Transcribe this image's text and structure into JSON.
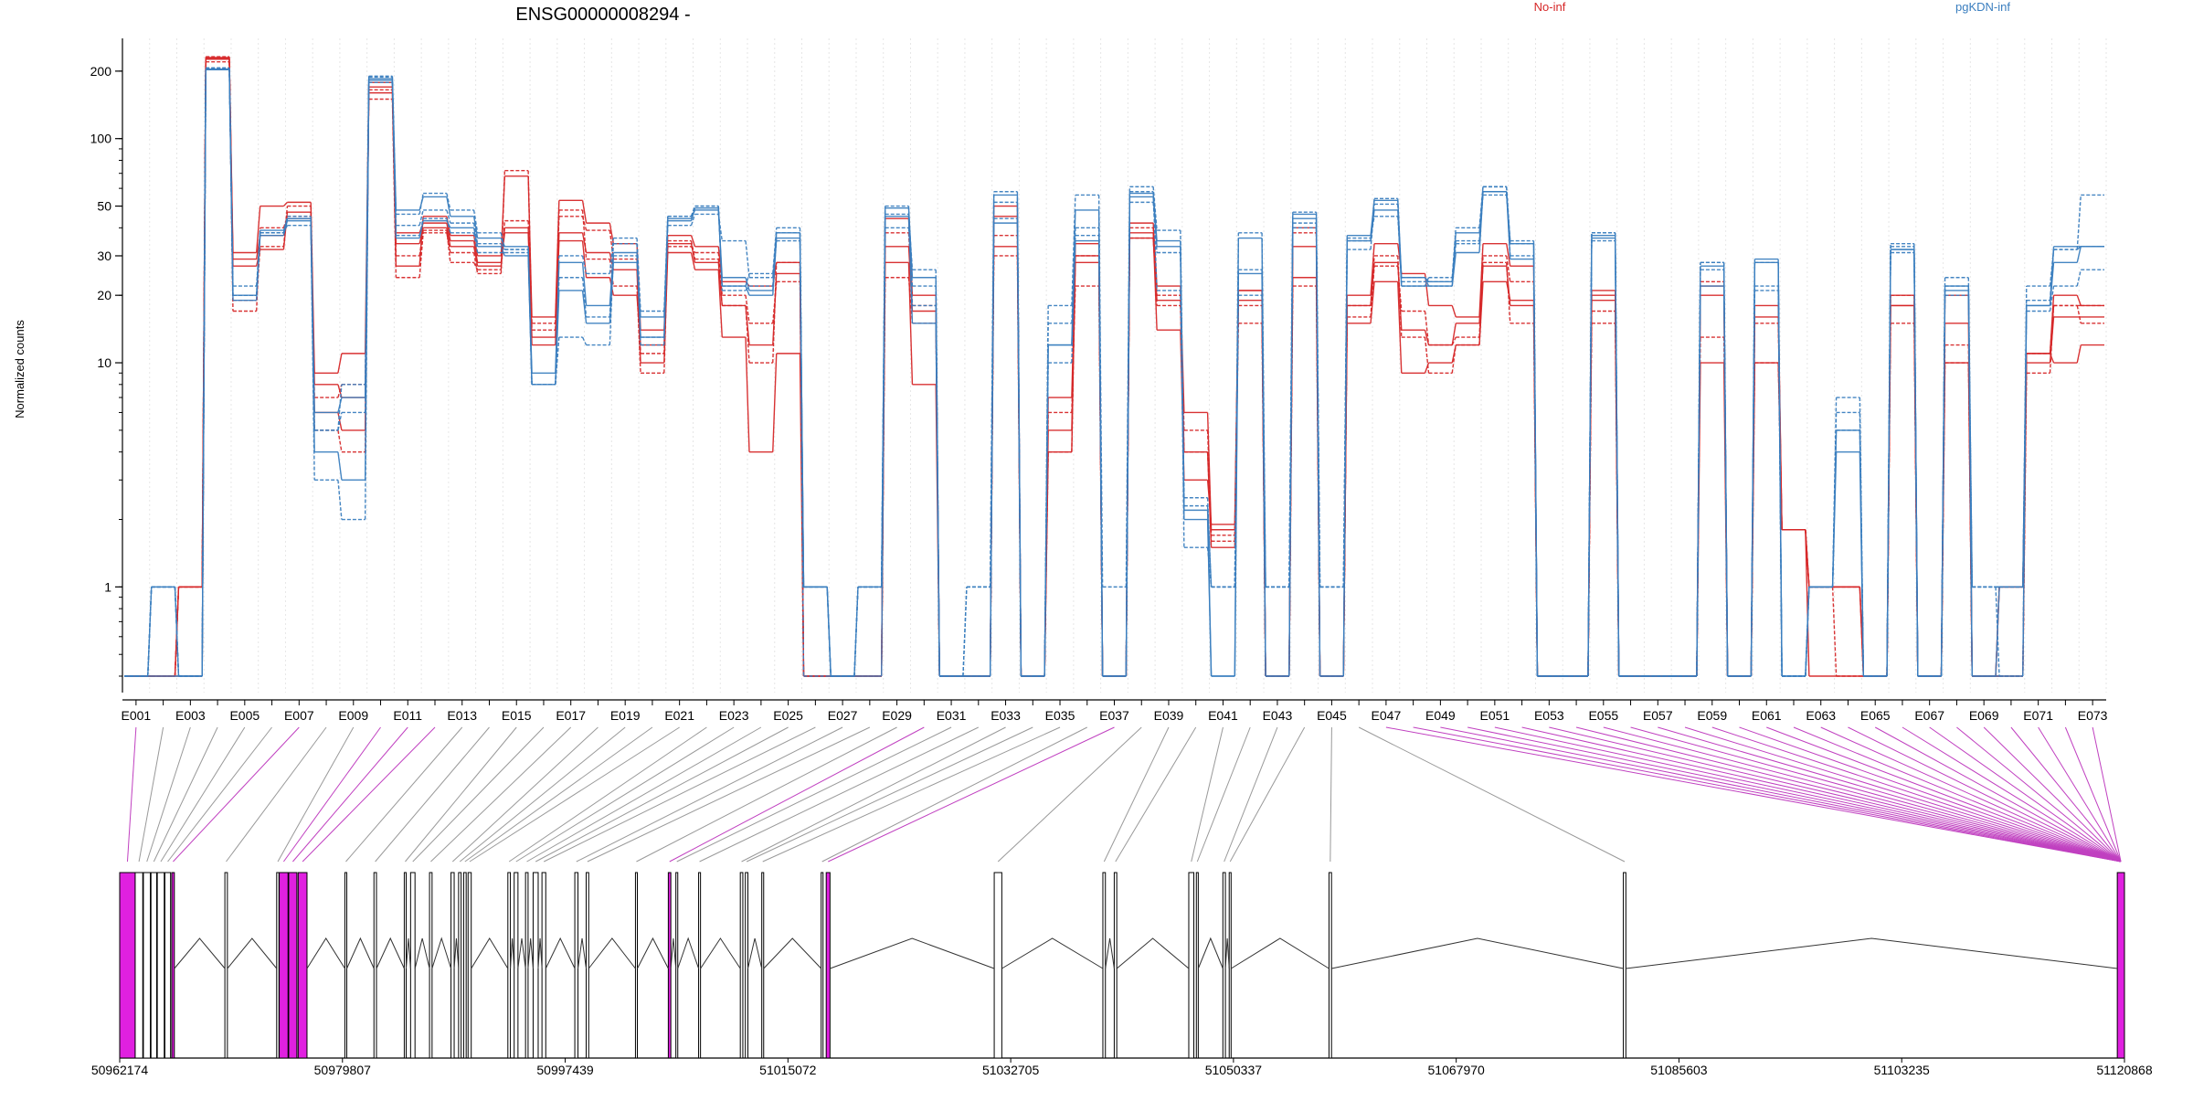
{
  "title": "ENSG00000008294 -",
  "ylabel": "Normalized counts",
  "legend": [
    {
      "label": "No-inf",
      "color": "#d62728"
    },
    {
      "label": "pgKDN-inf",
      "color": "#3a7ebf"
    }
  ],
  "chart_data": {
    "type": "line",
    "title": "ENSG00000008294 -",
    "ylabel": "Normalized counts",
    "y_scale": "log",
    "ylim": [
      0.4,
      280
    ],
    "y_ticks": [
      1,
      10,
      20,
      30,
      50,
      100,
      200
    ],
    "y_tick_labels": [
      "1",
      "10",
      "20",
      "30",
      "50",
      "100",
      "200"
    ],
    "grid": "vertical, light dotted",
    "legend_position": "top-right",
    "zero_floor": 0.4,
    "categories": [
      "E001",
      "E002",
      "E003",
      "E004",
      "E005",
      "E006",
      "E007",
      "E008",
      "E009",
      "E010",
      "E011",
      "E012",
      "E013",
      "E014",
      "E015",
      "E016",
      "E017",
      "E018",
      "E019",
      "E020",
      "E021",
      "E022",
      "E023",
      "E024",
      "E025",
      "E026",
      "E027",
      "E028",
      "E029",
      "E030",
      "E031",
      "E032",
      "E033",
      "E034",
      "E035",
      "E036",
      "E037",
      "E038",
      "E039",
      "E040",
      "E041",
      "E042",
      "E043",
      "E044",
      "E045",
      "E046",
      "E047",
      "E048",
      "E049",
      "E050",
      "E051",
      "E052",
      "E053",
      "E054",
      "E055",
      "E056",
      "E057",
      "E058",
      "E059",
      "E060",
      "E061",
      "E062",
      "E063",
      "E064",
      "E065",
      "E066",
      "E067",
      "E068",
      "E069",
      "E070",
      "E071",
      "E072",
      "E073"
    ],
    "x_tick_labels": [
      "E001",
      "E003",
      "E005",
      "E007",
      "E009",
      "E011",
      "E013",
      "E015",
      "E017",
      "E019",
      "E021",
      "E023",
      "E025",
      "E027",
      "E029",
      "E031",
      "E033",
      "E035",
      "E037",
      "E039",
      "E041",
      "E043",
      "E045",
      "E047",
      "E049",
      "E051",
      "E053",
      "E055",
      "E057",
      "E059",
      "E061",
      "E063",
      "E065",
      "E067",
      "E069",
      "E071",
      "E073"
    ],
    "series": [
      {
        "group": "No-inf",
        "color": "#d62728",
        "values": [
          0,
          0,
          1,
          230,
          31,
          50,
          52,
          9,
          11,
          178,
          27,
          45,
          37,
          30,
          68,
          16,
          53,
          42,
          34,
          14,
          37,
          33,
          23,
          22,
          28,
          0,
          0,
          0,
          44,
          20,
          0,
          0,
          50,
          0,
          7,
          30,
          0,
          42,
          22,
          6,
          1.8,
          21,
          0,
          40,
          0,
          20,
          34,
          25,
          18,
          16,
          34,
          27,
          0,
          0,
          20,
          0,
          0,
          0,
          22,
          0,
          18,
          1.8,
          1,
          1,
          0,
          18,
          0,
          20,
          0,
          1,
          11,
          20,
          18
        ]
      },
      {
        "group": "No-inf",
        "color": "#d62728",
        "values": [
          0,
          0,
          1,
          220,
          19,
          33,
          50,
          7,
          8,
          150,
          24,
          38,
          31,
          25,
          72,
          14,
          45,
          39,
          29,
          11,
          33,
          31,
          20,
          15,
          23,
          0,
          0,
          0,
          24,
          15,
          0,
          0,
          30,
          0,
          6,
          22,
          0,
          36,
          18,
          4,
          1.6,
          15,
          0,
          22,
          0,
          16,
          27,
          17,
          12,
          13,
          30,
          23,
          0,
          0,
          15,
          0,
          0,
          0,
          13,
          0,
          15,
          1.8,
          1,
          0.4,
          0,
          15,
          0,
          10,
          0,
          0.4,
          9,
          18,
          15
        ]
      },
      {
        "group": "No-inf",
        "color": "#d62728",
        "values": [
          0,
          0,
          0,
          228,
          27,
          32,
          47,
          6,
          5,
          170,
          38,
          42,
          35,
          28,
          38,
          12,
          38,
          31,
          26,
          10,
          31,
          26,
          13,
          4,
          11,
          0,
          0,
          0,
          28,
          8,
          0,
          0,
          45,
          0,
          4,
          34,
          0,
          38,
          14,
          3,
          1.9,
          21,
          0,
          24,
          0,
          15,
          23,
          9,
          10,
          12,
          23,
          19,
          0,
          0,
          21,
          0,
          0,
          0,
          10,
          0,
          10,
          1.8,
          0.4,
          0.4,
          0,
          20,
          0,
          10,
          0,
          1,
          11,
          10,
          12
        ]
      },
      {
        "group": "No-inf",
        "color": "#d62728",
        "values": [
          0,
          0,
          1,
          232,
          17,
          40,
          45,
          5,
          4,
          165,
          30,
          39,
          28,
          26,
          43,
          15,
          48,
          29,
          22,
          9,
          35,
          29,
          18,
          10,
          28,
          0,
          0,
          0,
          38,
          18,
          0,
          0,
          37,
          0,
          4,
          30,
          0,
          40,
          20,
          5,
          1.7,
          18,
          0,
          38,
          0,
          18,
          30,
          13,
          9,
          12,
          28,
          15,
          0,
          0,
          17,
          0,
          0,
          0,
          23,
          0,
          10,
          1.8,
          1,
          1,
          0,
          20,
          0,
          12,
          0,
          0.4,
          11,
          18,
          18
        ]
      },
      {
        "group": "No-inf",
        "color": "#d62728",
        "values": [
          0,
          0,
          1,
          226,
          29,
          37,
          44,
          8,
          7,
          160,
          34,
          40,
          33,
          27,
          40,
          13,
          35,
          24,
          20,
          12,
          34,
          28,
          18,
          12,
          25,
          0,
          0,
          0,
          33,
          17,
          0,
          0,
          33,
          0,
          5,
          28,
          0,
          36,
          19,
          4,
          1.5,
          19,
          0,
          33,
          0,
          18,
          28,
          14,
          12,
          15,
          27,
          18,
          0,
          0,
          19,
          0,
          0,
          0,
          20,
          0,
          16,
          1.8,
          1,
          1,
          0,
          18,
          0,
          15,
          0,
          0.4,
          10,
          16,
          16
        ]
      },
      {
        "group": "pgKDN-inf",
        "color": "#3a7ebf",
        "values": [
          0,
          1,
          0,
          205,
          22,
          38,
          45,
          5,
          8,
          190,
          46,
          57,
          48,
          38,
          32,
          8,
          24,
          16,
          34,
          12,
          45,
          50,
          21,
          22,
          35,
          1,
          0,
          1,
          46,
          26,
          0,
          1,
          58,
          0,
          18,
          56,
          1,
          61,
          39,
          2.5,
          1,
          38,
          1,
          47,
          1,
          35,
          54,
          22,
          24,
          40,
          61,
          35,
          0,
          0,
          38,
          0,
          0,
          0,
          28,
          0,
          22,
          0,
          1,
          7,
          0,
          34,
          0,
          24,
          1,
          0.4,
          22,
          32,
          56
        ]
      },
      {
        "group": "pgKDN-inf",
        "color": "#3a7ebf",
        "values": [
          0,
          1,
          0,
          203,
          20,
          37,
          43,
          6,
          7,
          185,
          48,
          55,
          45,
          36,
          33,
          9,
          28,
          18,
          31,
          13,
          44,
          48,
          24,
          21,
          38,
          1,
          0,
          1,
          49,
          24,
          0,
          0,
          56,
          0,
          12,
          48,
          0,
          57,
          35,
          2,
          0.4,
          36,
          0,
          46,
          0,
          37,
          53,
          24,
          23,
          38,
          58,
          34,
          0,
          0,
          36,
          0,
          0,
          0,
          27,
          0,
          28,
          0,
          1,
          5,
          0,
          32,
          0,
          22,
          0,
          0.4,
          18,
          28,
          33
        ]
      },
      {
        "group": "pgKDN-inf",
        "color": "#3a7ebf",
        "values": [
          0,
          1,
          0,
          207,
          20,
          38,
          44,
          5,
          6,
          178,
          41,
          48,
          42,
          34,
          32,
          8,
          13,
          12,
          30,
          13,
          41,
          46,
          35,
          24,
          38,
          1,
          0,
          1,
          40,
          22,
          0,
          0,
          44,
          0,
          10,
          40,
          0,
          52,
          31,
          1.5,
          1,
          26,
          1,
          40,
          1,
          36,
          45,
          24,
          22,
          34,
          56,
          34,
          0,
          0,
          38,
          0,
          0,
          0,
          26,
          0,
          28,
          0,
          1,
          5,
          0,
          33,
          0,
          22,
          1,
          1,
          17,
          22,
          26
        ]
      },
      {
        "group": "pgKDN-inf",
        "color": "#3a7ebf",
        "values": [
          0,
          0,
          0,
          204,
          19,
          39,
          44,
          4,
          3,
          182,
          36,
          43,
          40,
          33,
          30,
          8,
          21,
          15,
          28,
          16,
          43,
          49,
          22,
          20,
          36,
          1,
          0,
          0,
          45,
          15,
          0,
          0,
          42,
          0,
          12,
          35,
          0,
          55,
          33,
          2.2,
          0.4,
          25,
          0,
          44,
          0,
          35,
          48,
          22,
          22,
          31,
          58,
          29,
          0,
          0,
          37,
          0,
          0,
          0,
          22,
          0,
          29,
          0,
          1,
          4,
          0,
          32,
          0,
          21,
          0,
          1,
          18,
          33,
          33
        ]
      },
      {
        "group": "pgKDN-inf",
        "color": "#3a7ebf",
        "values": [
          0,
          1,
          0,
          206,
          20,
          38,
          41,
          3,
          2,
          188,
          37,
          44,
          38,
          31,
          31,
          8,
          30,
          25,
          36,
          17,
          45,
          50,
          22,
          25,
          40,
          0,
          0,
          1,
          50,
          18,
          0,
          1,
          52,
          0,
          15,
          37,
          0,
          58,
          21,
          2.3,
          1,
          20,
          1,
          42,
          1,
          32,
          51,
          23,
          23,
          35,
          61,
          30,
          0,
          0,
          35,
          0,
          0,
          0,
          28,
          0,
          21,
          0,
          1,
          6,
          0,
          31,
          0,
          20,
          1,
          1,
          19,
          32,
          33
        ]
      }
    ]
  },
  "exon_panel": {
    "start_label": "50962174",
    "end_label": "51120868",
    "ticks": [
      50962174,
      50979807,
      50997439,
      51015072,
      51032705,
      51050337,
      51067970,
      51085603,
      51103235,
      51120868
    ],
    "tick_labels": [
      "50962174",
      "50979807",
      "50997439",
      "51015072",
      "51032705",
      "51050337",
      "51067970",
      "51085603",
      "51103235",
      "51120868"
    ],
    "highlight_color": "#e020e0",
    "exons": [
      {
        "start": 50962174,
        "end": 50963400,
        "highlight": true
      },
      {
        "start": 50963400,
        "end": 50964000,
        "highlight": false
      },
      {
        "start": 50964050,
        "end": 50964600,
        "highlight": false
      },
      {
        "start": 50964650,
        "end": 50965100,
        "highlight": false
      },
      {
        "start": 50965150,
        "end": 50965700,
        "highlight": false
      },
      {
        "start": 50965750,
        "end": 50966200,
        "highlight": false
      },
      {
        "start": 50966300,
        "end": 50966500,
        "highlight": true
      },
      {
        "start": 50970500,
        "end": 50970700,
        "highlight": false
      },
      {
        "start": 50974600,
        "end": 50974780,
        "highlight": false
      },
      {
        "start": 50974800,
        "end": 50975500,
        "highlight": true
      },
      {
        "start": 50975550,
        "end": 50976200,
        "highlight": true
      },
      {
        "start": 50976300,
        "end": 50977000,
        "highlight": true
      },
      {
        "start": 50980000,
        "end": 50980150,
        "highlight": false
      },
      {
        "start": 50982300,
        "end": 50982500,
        "highlight": false
      },
      {
        "start": 50984700,
        "end": 50984850,
        "highlight": false
      },
      {
        "start": 50985200,
        "end": 50985550,
        "highlight": false
      },
      {
        "start": 50986700,
        "end": 50986900,
        "highlight": false
      },
      {
        "start": 50988400,
        "end": 50988650,
        "highlight": false
      },
      {
        "start": 50989000,
        "end": 50989200,
        "highlight": false
      },
      {
        "start": 50989400,
        "end": 50989600,
        "highlight": false
      },
      {
        "start": 50989750,
        "end": 50990000,
        "highlight": false
      },
      {
        "start": 50992900,
        "end": 50993100,
        "highlight": false
      },
      {
        "start": 50993400,
        "end": 50993700,
        "highlight": false
      },
      {
        "start": 50994300,
        "end": 50994500,
        "highlight": false
      },
      {
        "start": 50994900,
        "end": 50995300,
        "highlight": false
      },
      {
        "start": 50995600,
        "end": 50995900,
        "highlight": false
      },
      {
        "start": 50998200,
        "end": 50998450,
        "highlight": false
      },
      {
        "start": 50999100,
        "end": 50999300,
        "highlight": false
      },
      {
        "start": 51003000,
        "end": 51003150,
        "highlight": false
      },
      {
        "start": 51005600,
        "end": 51005800,
        "highlight": true
      },
      {
        "start": 51006200,
        "end": 51006350,
        "highlight": false
      },
      {
        "start": 51008000,
        "end": 51008150,
        "highlight": false
      },
      {
        "start": 51011300,
        "end": 51011500,
        "highlight": false
      },
      {
        "start": 51011700,
        "end": 51011900,
        "highlight": false
      },
      {
        "start": 51013000,
        "end": 51013150,
        "highlight": false
      },
      {
        "start": 51017700,
        "end": 51017850,
        "highlight": false
      },
      {
        "start": 51018100,
        "end": 51018400,
        "highlight": true
      },
      {
        "start": 51031400,
        "end": 51032000,
        "highlight": false
      },
      {
        "start": 51040000,
        "end": 51040200,
        "highlight": false
      },
      {
        "start": 51040900,
        "end": 51041100,
        "highlight": false
      },
      {
        "start": 51046800,
        "end": 51047200,
        "highlight": false
      },
      {
        "start": 51047400,
        "end": 51047550,
        "highlight": false
      },
      {
        "start": 51049500,
        "end": 51049700,
        "highlight": false
      },
      {
        "start": 51050000,
        "end": 51050150,
        "highlight": false
      },
      {
        "start": 51057900,
        "end": 51058100,
        "highlight": false
      },
      {
        "start": 51081200,
        "end": 51081400,
        "highlight": false
      },
      {
        "start": 51120300,
        "end": 51120868,
        "highlight": true
      }
    ]
  }
}
